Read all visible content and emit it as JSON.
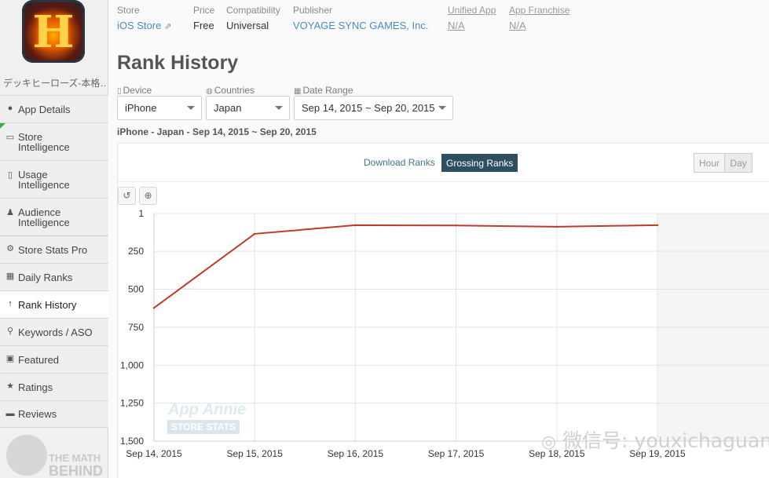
{
  "sidebar": {
    "app_name": "デッキヒーローズ-本格…",
    "items": [
      {
        "label": "App Details",
        "icon": "info-icon"
      },
      {
        "label": "Store Intelligence",
        "icon": "store-icon"
      },
      {
        "label": "Usage Intelligence",
        "icon": "usage-icon"
      },
      {
        "label": "Audience Intelligence",
        "icon": "person-icon"
      },
      {
        "label": "Store Stats Pro",
        "icon": "gear-icon"
      },
      {
        "label": "Daily Ranks",
        "icon": "calendar-icon"
      },
      {
        "label": "Rank History",
        "icon": "arrow-up-icon"
      },
      {
        "label": "Keywords / ASO",
        "icon": "keywords-icon"
      },
      {
        "label": "Featured",
        "icon": "featured-icon"
      },
      {
        "label": "Ratings",
        "icon": "star-icon"
      },
      {
        "label": "Reviews",
        "icon": "comment-icon"
      }
    ],
    "watermark": {
      "line1": "THE MATH",
      "line2": "BEHIND"
    }
  },
  "meta": {
    "store_label": "Store",
    "store_value": "iOS Store",
    "price_label": "Price",
    "price_value": "Free",
    "compat_label": "Compatibility",
    "compat_value": "Universal",
    "publisher_label": "Publisher",
    "publisher_value": "VOYAGE SYNC GAMES, Inc.",
    "unified_label": "Unified App",
    "unified_value": "N/A",
    "franchise_label": "App Franchise",
    "franchise_value": "N/A"
  },
  "page_title": "Rank History",
  "filters": {
    "device_label": "Device",
    "device_value": "iPhone",
    "countries_label": "Countries",
    "countries_value": "Japan",
    "daterange_label": "Date Range",
    "daterange_value": "Sep 14, 2015 ~ Sep 20, 2015"
  },
  "summary": "iPhone - Japan - Sep 14, 2015 ~ Sep 20, 2015",
  "tabs": {
    "download": "Download Ranks",
    "grossing": "Grossing Ranks"
  },
  "granularity": {
    "hour": "Hour",
    "day": "Day"
  },
  "watermarks": {
    "app_annie": "App Annie",
    "store_stats": "STORE STATS",
    "wechat": "微信号: youxichaguan"
  },
  "colors": {
    "line": "#c0392b",
    "active_tab": "#2e4e62",
    "link": "#4a8bbf"
  },
  "chart_data": {
    "type": "line",
    "x": [
      "Sep 14, 2015",
      "Sep 15, 2015",
      "Sep 16, 2015",
      "Sep 17, 2015",
      "Sep 18, 2015",
      "Sep 19, 2015"
    ],
    "series": [
      {
        "values": [
          623,
          135,
          78,
          80,
          88,
          78
        ]
      }
    ],
    "y_ticks": [
      "1",
      "250",
      "500",
      "750",
      "1,000",
      "1,250",
      "1,500"
    ],
    "ylim": [
      1,
      1500
    ],
    "y_reversed": true,
    "grid": true,
    "shaded_region": "Sep 19, 2015 onward"
  }
}
